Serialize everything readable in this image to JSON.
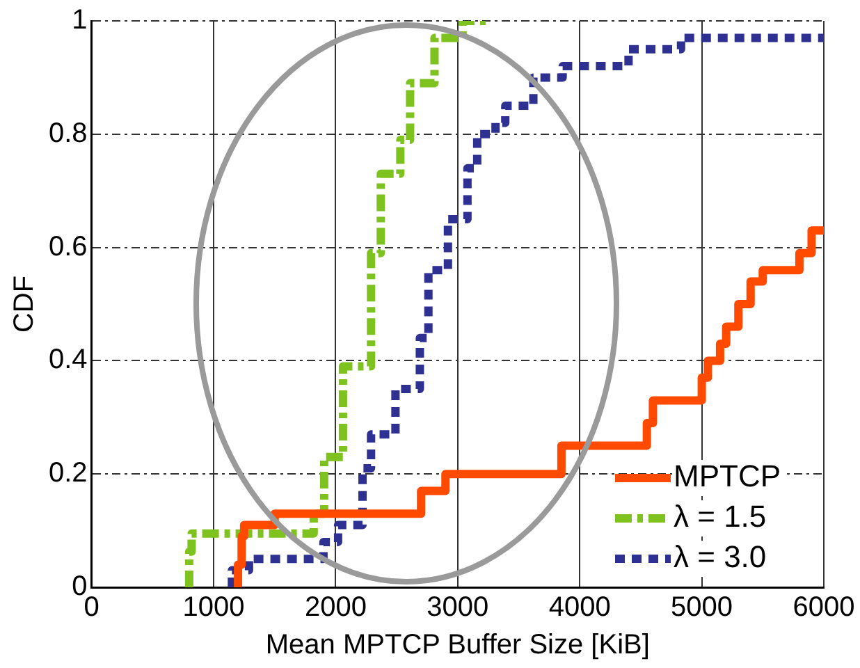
{
  "chart_data": {
    "type": "step",
    "xlabel": "Mean MPTCP Buffer Size [KiB]",
    "ylabel": "CDF",
    "xlim": [
      0,
      6000
    ],
    "xticks": [
      0,
      1000,
      2000,
      3000,
      4000,
      5000,
      6000
    ],
    "ylim": [
      0,
      1
    ],
    "yticks": [
      0,
      0.2,
      0.4,
      0.6,
      0.8,
      1
    ],
    "grid": true,
    "legend": "bottom right",
    "series": [
      {
        "name": "MPTCP",
        "color": "#ff4a00",
        "line_style": "solid",
        "x": [
          1200,
          1230,
          1250,
          1500,
          2700,
          2900,
          3850,
          4550,
          4600,
          5000,
          5050,
          5150,
          5200,
          5300,
          5400,
          5500,
          5800,
          5900,
          6000
        ],
        "values": [
          0,
          0.04,
          0.09,
          0.11,
          0.13,
          0.17,
          0.2,
          0.25,
          0.29,
          0.33,
          0.37,
          0.4,
          0.43,
          0.46,
          0.5,
          0.54,
          0.56,
          0.59,
          0.63
        ]
      },
      {
        "name": "λ = 1.5",
        "color": "#7dc21e",
        "line_style": "dashed",
        "x": [
          800,
          820,
          1200,
          1820,
          1906,
          2060,
          2290,
          2370,
          2530,
          2610,
          2810,
          3040,
          3230
        ],
        "values": [
          0,
          0.063,
          0.095,
          0.095,
          0.13,
          0.23,
          0.39,
          0.59,
          0.73,
          0.79,
          0.89,
          0.97,
          1
        ]
      },
      {
        "name": "λ = 3.0",
        "color": "#2e3192",
        "line_style": "dotted",
        "x": [
          1150,
          1290,
          1470,
          1900,
          2020,
          2220,
          2290,
          2490,
          2690,
          2760,
          2920,
          3080,
          3160,
          3310,
          3390,
          3460,
          3620,
          3700,
          3860,
          3930,
          4400,
          4480,
          4830,
          4950,
          6000
        ],
        "values": [
          0,
          0.03,
          0.05,
          0.05,
          0.08,
          0.11,
          0.21,
          0.27,
          0.35,
          0.44,
          0.56,
          0.65,
          0.74,
          0.8,
          0.82,
          0.85,
          0.85,
          0.9,
          0.9,
          0.92,
          0.92,
          0.95,
          0.95,
          0.97,
          0.97
        ]
      }
    ]
  }
}
